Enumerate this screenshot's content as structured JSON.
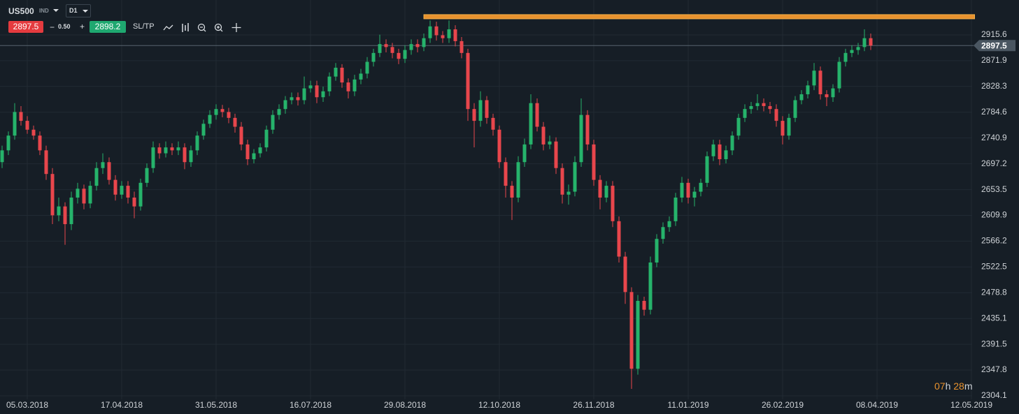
{
  "toolbar": {
    "symbol": "US500",
    "market": "IND",
    "timeframe": "D1",
    "sell": "2897.5",
    "minus": "−",
    "volume": "0.50",
    "plus": "+",
    "buy": "2898.2",
    "sltp": "SL/TP"
  },
  "chart_data": {
    "type": "candlestick",
    "categories": [
      null,
      null,
      null,
      null,
      "05.03.2018",
      null,
      null,
      null,
      null,
      null,
      null,
      null,
      null,
      null,
      null,
      null,
      null,
      null,
      null,
      "17.04.2018",
      null,
      null,
      null,
      null,
      null,
      null,
      null,
      null,
      null,
      null,
      null,
      null,
      null,
      null,
      "31.05.2018",
      null,
      null,
      null,
      null,
      null,
      null,
      null,
      null,
      null,
      null,
      null,
      null,
      null,
      null,
      "16.07.2018",
      null,
      null,
      null,
      null,
      null,
      null,
      null,
      null,
      null,
      null,
      null,
      null,
      null,
      null,
      "29.08.2018",
      null,
      null,
      null,
      null,
      null,
      null,
      null,
      null,
      null,
      null,
      null,
      null,
      null,
      null,
      "12.10.2018",
      null,
      null,
      null,
      null,
      null,
      null,
      null,
      null,
      null,
      null,
      null,
      null,
      null,
      null,
      "26.11.2018",
      null,
      null,
      null,
      null,
      null,
      null,
      null,
      null,
      null,
      null,
      null,
      null,
      null,
      null,
      "11.01.2019",
      null,
      null,
      null,
      null,
      null,
      null,
      null,
      null,
      null,
      null,
      null,
      null,
      null,
      null,
      "26.02.2019",
      null,
      null,
      null,
      null,
      null,
      null,
      null,
      null,
      null,
      null,
      null,
      null,
      null,
      null,
      "08.04.2019",
      null,
      null,
      null,
      null,
      null,
      null,
      null,
      null,
      null,
      null,
      null,
      null,
      null,
      null,
      "12.05.2019"
    ],
    "candles": [
      [
        2700,
        2728,
        2690,
        2720
      ],
      [
        2720,
        2752,
        2712,
        2745
      ],
      [
        2745,
        2800,
        2738,
        2785
      ],
      [
        2785,
        2795,
        2762,
        2770
      ],
      [
        2770,
        2778,
        2748,
        2755
      ],
      [
        2755,
        2762,
        2738,
        2745
      ],
      [
        2745,
        2752,
        2712,
        2720
      ],
      [
        2720,
        2728,
        2670,
        2680
      ],
      [
        2680,
        2690,
        2595,
        2610
      ],
      [
        2610,
        2640,
        2600,
        2625
      ],
      [
        2625,
        2632,
        2560,
        2595
      ],
      [
        2595,
        2650,
        2585,
        2640
      ],
      [
        2640,
        2665,
        2630,
        2655
      ],
      [
        2655,
        2662,
        2620,
        2630
      ],
      [
        2630,
        2668,
        2622,
        2660
      ],
      [
        2660,
        2700,
        2652,
        2690
      ],
      [
        2690,
        2715,
        2680,
        2700
      ],
      [
        2700,
        2708,
        2662,
        2670
      ],
      [
        2670,
        2678,
        2635,
        2645
      ],
      [
        2645,
        2668,
        2638,
        2660
      ],
      [
        2660,
        2668,
        2630,
        2640
      ],
      [
        2640,
        2650,
        2605,
        2625
      ],
      [
        2625,
        2672,
        2618,
        2665
      ],
      [
        2665,
        2698,
        2658,
        2690
      ],
      [
        2690,
        2735,
        2682,
        2725
      ],
      [
        2725,
        2732,
        2706,
        2715
      ],
      [
        2715,
        2735,
        2708,
        2725
      ],
      [
        2725,
        2732,
        2712,
        2720
      ],
      [
        2720,
        2735,
        2712,
        2725
      ],
      [
        2725,
        2732,
        2688,
        2700
      ],
      [
        2700,
        2728,
        2692,
        2720
      ],
      [
        2720,
        2752,
        2712,
        2745
      ],
      [
        2745,
        2772,
        2738,
        2765
      ],
      [
        2765,
        2788,
        2758,
        2780
      ],
      [
        2780,
        2798,
        2772,
        2790
      ],
      [
        2790,
        2797,
        2776,
        2785
      ],
      [
        2785,
        2792,
        2766,
        2775
      ],
      [
        2775,
        2782,
        2750,
        2760
      ],
      [
        2760,
        2768,
        2720,
        2730
      ],
      [
        2730,
        2738,
        2695,
        2705
      ],
      [
        2705,
        2722,
        2698,
        2715
      ],
      [
        2715,
        2732,
        2708,
        2725
      ],
      [
        2725,
        2762,
        2718,
        2755
      ],
      [
        2755,
        2788,
        2748,
        2780
      ],
      [
        2780,
        2798,
        2772,
        2790
      ],
      [
        2790,
        2812,
        2782,
        2805
      ],
      [
        2805,
        2818,
        2798,
        2810
      ],
      [
        2810,
        2818,
        2796,
        2805
      ],
      [
        2805,
        2845,
        2798,
        2825
      ],
      [
        2825,
        2838,
        2818,
        2830
      ],
      [
        2830,
        2838,
        2800,
        2810
      ],
      [
        2810,
        2828,
        2802,
        2820
      ],
      [
        2820,
        2852,
        2812,
        2845
      ],
      [
        2845,
        2868,
        2838,
        2860
      ],
      [
        2860,
        2866,
        2826,
        2835
      ],
      [
        2835,
        2842,
        2808,
        2820
      ],
      [
        2820,
        2848,
        2812,
        2840
      ],
      [
        2840,
        2858,
        2832,
        2850
      ],
      [
        2850,
        2878,
        2842,
        2870
      ],
      [
        2870,
        2892,
        2862,
        2885
      ],
      [
        2885,
        2916,
        2878,
        2900
      ],
      [
        2900,
        2908,
        2886,
        2895
      ],
      [
        2895,
        2902,
        2876,
        2885
      ],
      [
        2885,
        2892,
        2866,
        2875
      ],
      [
        2875,
        2898,
        2868,
        2890
      ],
      [
        2890,
        2908,
        2882,
        2900
      ],
      [
        2900,
        2908,
        2886,
        2895
      ],
      [
        2895,
        2918,
        2888,
        2910
      ],
      [
        2910,
        2940,
        2902,
        2930
      ],
      [
        2930,
        2938,
        2906,
        2915
      ],
      [
        2915,
        2922,
        2902,
        2910
      ],
      [
        2910,
        2940,
        2902,
        2925
      ],
      [
        2925,
        2932,
        2896,
        2905
      ],
      [
        2905,
        2912,
        2876,
        2885
      ],
      [
        2885,
        2892,
        2770,
        2790
      ],
      [
        2790,
        2800,
        2725,
        2770
      ],
      [
        2770,
        2820,
        2760,
        2805
      ],
      [
        2805,
        2812,
        2765,
        2775
      ],
      [
        2775,
        2782,
        2745,
        2755
      ],
      [
        2755,
        2762,
        2690,
        2700
      ],
      [
        2700,
        2708,
        2640,
        2660
      ],
      [
        2660,
        2668,
        2602,
        2640
      ],
      [
        2640,
        2710,
        2632,
        2700
      ],
      [
        2700,
        2740,
        2692,
        2730
      ],
      [
        2730,
        2815,
        2722,
        2800
      ],
      [
        2800,
        2808,
        2752,
        2760
      ],
      [
        2760,
        2768,
        2720,
        2730
      ],
      [
        2730,
        2745,
        2722,
        2735
      ],
      [
        2735,
        2742,
        2680,
        2690
      ],
      [
        2690,
        2698,
        2630,
        2645
      ],
      [
        2645,
        2662,
        2628,
        2650
      ],
      [
        2650,
        2710,
        2642,
        2700
      ],
      [
        2700,
        2808,
        2692,
        2780
      ],
      [
        2780,
        2788,
        2720,
        2730
      ],
      [
        2730,
        2738,
        2660,
        2670
      ],
      [
        2670,
        2678,
        2620,
        2640
      ],
      [
        2640,
        2668,
        2632,
        2660
      ],
      [
        2660,
        2668,
        2590,
        2600
      ],
      [
        2600,
        2608,
        2530,
        2540
      ],
      [
        2540,
        2548,
        2460,
        2480
      ],
      [
        2480,
        2488,
        2316,
        2350
      ],
      [
        2350,
        2475,
        2340,
        2465
      ],
      [
        2465,
        2472,
        2440,
        2450
      ],
      [
        2450,
        2540,
        2442,
        2530
      ],
      [
        2530,
        2578,
        2522,
        2570
      ],
      [
        2570,
        2598,
        2562,
        2590
      ],
      [
        2590,
        2608,
        2582,
        2600
      ],
      [
        2600,
        2648,
        2592,
        2640
      ],
      [
        2640,
        2675,
        2632,
        2665
      ],
      [
        2665,
        2672,
        2630,
        2640
      ],
      [
        2640,
        2658,
        2625,
        2650
      ],
      [
        2650,
        2672,
        2642,
        2665
      ],
      [
        2665,
        2718,
        2658,
        2710
      ],
      [
        2710,
        2738,
        2702,
        2730
      ],
      [
        2730,
        2738,
        2695,
        2705
      ],
      [
        2705,
        2728,
        2698,
        2720
      ],
      [
        2720,
        2752,
        2712,
        2745
      ],
      [
        2745,
        2782,
        2738,
        2775
      ],
      [
        2775,
        2798,
        2768,
        2790
      ],
      [
        2790,
        2802,
        2782,
        2795
      ],
      [
        2795,
        2815,
        2788,
        2800
      ],
      [
        2800,
        2808,
        2786,
        2795
      ],
      [
        2795,
        2802,
        2782,
        2790
      ],
      [
        2790,
        2798,
        2760,
        2770
      ],
      [
        2770,
        2778,
        2730,
        2745
      ],
      [
        2745,
        2782,
        2738,
        2775
      ],
      [
        2775,
        2812,
        2768,
        2805
      ],
      [
        2805,
        2822,
        2798,
        2815
      ],
      [
        2815,
        2838,
        2808,
        2830
      ],
      [
        2830,
        2868,
        2822,
        2855
      ],
      [
        2855,
        2862,
        2806,
        2815
      ],
      [
        2815,
        2822,
        2795,
        2810
      ],
      [
        2810,
        2832,
        2802,
        2825
      ],
      [
        2825,
        2878,
        2818,
        2870
      ],
      [
        2870,
        2892,
        2862,
        2885
      ],
      [
        2885,
        2898,
        2878,
        2890
      ],
      [
        2890,
        2902,
        2882,
        2895
      ],
      [
        2895,
        2925,
        2888,
        2910
      ],
      [
        2910,
        2918,
        2890,
        2897.5
      ]
    ],
    "up_color": "#26b36b",
    "down_color": "#e8464c",
    "ylim": [
      2298.2,
      2974.7
    ],
    "yticks": [
      2304.1,
      2347.8,
      2391.5,
      2435.1,
      2478.8,
      2522.5,
      2566.2,
      2609.9,
      2653.5,
      2697.2,
      2740.9,
      2784.6,
      2828.3,
      2871.9,
      2915.6
    ],
    "grid": true,
    "current_price": 2897.5,
    "level": {
      "value": 2946.4,
      "xrange": [
        67,
        154.5
      ],
      "color": "#e8922e"
    },
    "timer": [
      "07",
      "h",
      "28",
      "m"
    ]
  }
}
